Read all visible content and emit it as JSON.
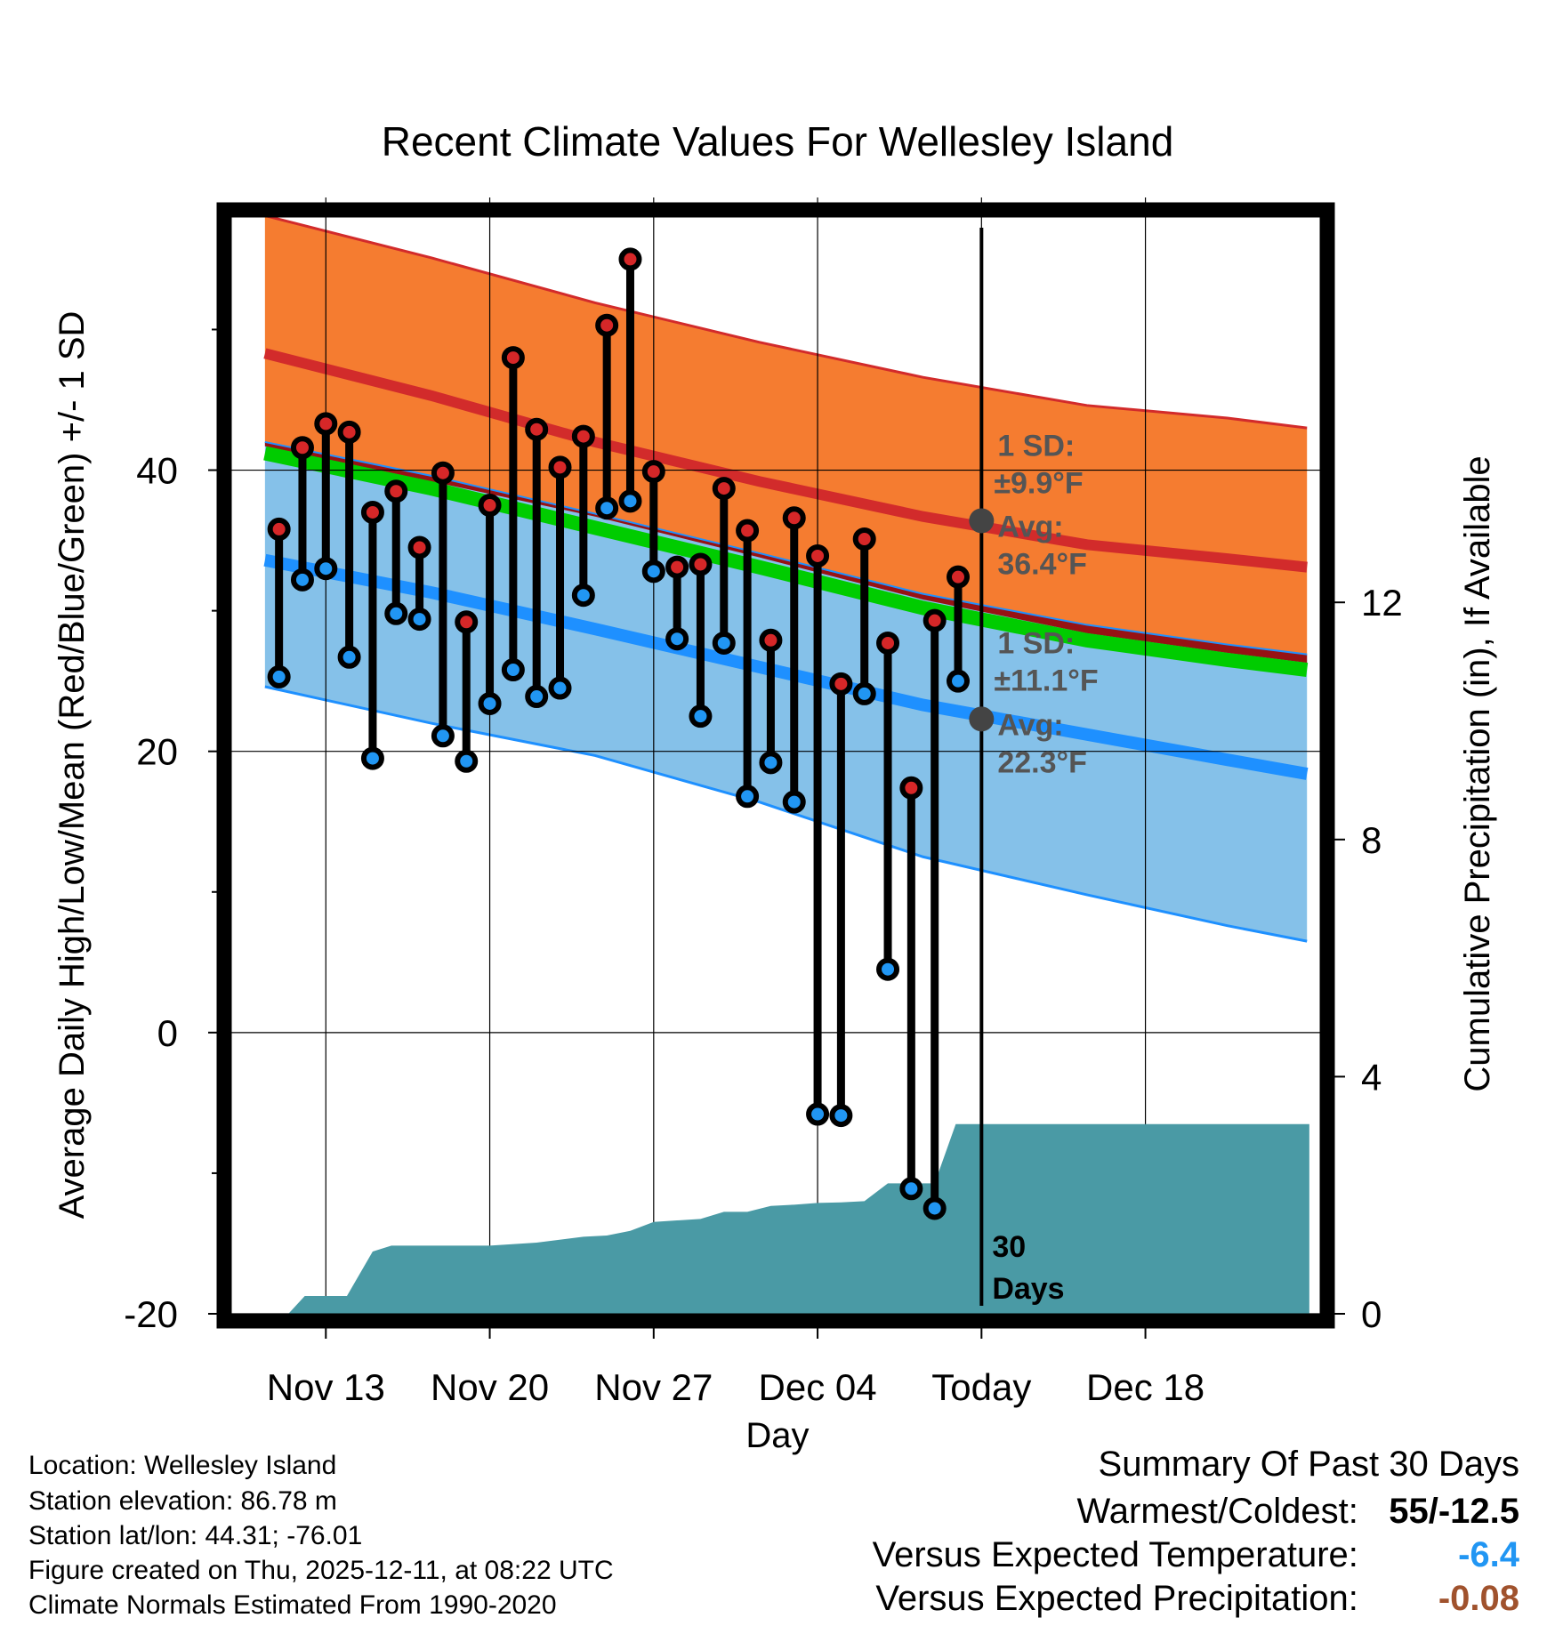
{
  "chart_data": {
    "type": "line",
    "title": "Recent Climate Values For Wellesley Island",
    "xlabel": "Day",
    "ylabel": "Average Daily High/Low/Mean (Red/Blue/Green) +/- 1 SD",
    "y2label": "Cumulative Precipitation (in), If Available",
    "ylim": [
      -20,
      58
    ],
    "y2lim": [
      0,
      18.5
    ],
    "xlim": [
      -4,
      42.5
    ],
    "x_ticks": [
      {
        "day": 0,
        "label": "Nov 13"
      },
      {
        "day": 7,
        "label": "Nov 20"
      },
      {
        "day": 14,
        "label": "Nov 27"
      },
      {
        "day": 21,
        "label": "Dec 04"
      },
      {
        "day": 28,
        "label": "Today"
      },
      {
        "day": 35,
        "label": "Dec 18"
      }
    ],
    "y_ticks": [
      -20,
      0,
      20,
      40
    ],
    "y_minor_ticks": [
      -10,
      10,
      30,
      50
    ],
    "y2_ticks": [
      0,
      4,
      8,
      12
    ],
    "today_day": 28,
    "normals_x": [
      -2.6,
      4.5,
      11.5,
      18.5,
      25.5,
      32.5,
      38.5,
      41.9
    ],
    "normal_high": [
      48.3,
      45.3,
      42.0,
      39.2,
      36.7,
      34.7,
      33.7,
      33.1
    ],
    "normal_high_upper": [
      58.1,
      55.1,
      51.9,
      49.1,
      46.6,
      44.6,
      43.7,
      43.0
    ],
    "normal_high_lower": [
      41.7,
      39.2,
      36.7,
      33.8,
      30.8,
      28.4,
      27.0,
      26.3
    ],
    "normal_mean": [
      41.2,
      38.7,
      35.9,
      33.1,
      30.2,
      27.9,
      26.5,
      25.8
    ],
    "normal_low": [
      33.6,
      31.3,
      28.7,
      26.0,
      23.3,
      21.2,
      19.4,
      18.4
    ],
    "normal_low_upper": [
      42.0,
      39.6,
      36.9,
      34.1,
      31.2,
      29.0,
      27.6,
      26.9
    ],
    "normal_low_lower": [
      24.6,
      22.0,
      19.7,
      16.4,
      12.5,
      9.8,
      7.6,
      6.5
    ],
    "days": [
      -2,
      -1,
      0,
      1,
      2,
      3,
      4,
      5,
      6,
      7,
      8,
      9,
      10,
      11,
      12,
      13,
      14,
      15,
      16,
      17,
      18,
      19,
      20,
      21,
      22,
      23,
      24,
      25,
      26,
      27
    ],
    "series": [
      {
        "name": "Daily High",
        "color": "#d62728",
        "values": [
          35.8,
          41.6,
          43.3,
          42.7,
          37.0,
          38.5,
          34.5,
          39.8,
          29.2,
          37.5,
          48.0,
          42.9,
          40.2,
          42.4,
          50.3,
          55.0,
          39.9,
          33.1,
          33.3,
          38.7,
          35.7,
          27.9,
          36.6,
          33.9,
          24.8,
          35.1,
          27.7,
          17.4,
          29.3,
          32.4
        ]
      },
      {
        "name": "Daily Low",
        "color": "#2196f3",
        "values": [
          25.3,
          32.2,
          33.0,
          26.7,
          19.5,
          29.8,
          29.4,
          21.1,
          19.3,
          23.4,
          25.8,
          23.9,
          24.5,
          31.1,
          37.3,
          37.8,
          32.8,
          28.0,
          22.5,
          27.7,
          16.8,
          19.2,
          16.4,
          -5.8,
          -5.9,
          24.1,
          4.5,
          -11.1,
          -12.5,
          25.0
        ]
      }
    ],
    "precip_x": [
      -2.6,
      -1.6,
      -0.9,
      0.9,
      2.0,
      2.8,
      4.0,
      7.0,
      9.0,
      11.0,
      12.0,
      13.0,
      14.0,
      16.0,
      17.0,
      18.0,
      19.0,
      20.0,
      21.0,
      22.0,
      23.0,
      24.0,
      25.0,
      26.0,
      26.9,
      27.8,
      28.0,
      34.0,
      42.0
    ],
    "precip_cum": [
      0.0,
      0.0,
      0.3,
      0.3,
      1.05,
      1.15,
      1.15,
      1.15,
      1.2,
      1.3,
      1.32,
      1.4,
      1.55,
      1.6,
      1.72,
      1.72,
      1.82,
      1.84,
      1.87,
      1.88,
      1.9,
      2.2,
      2.2,
      2.2,
      3.2,
      3.2,
      3.2,
      3.2,
      3.2
    ],
    "annotations": [
      {
        "lines": [
          "1 SD:",
          "±9.9°F",
          "Avg:",
          "36.4°F"
        ],
        "avg": 36.4,
        "sd": 9.9
      },
      {
        "lines": [
          "1 SD:",
          "±11.1°F",
          "Avg:",
          "22.3°F"
        ],
        "avg": 22.3,
        "sd": 11.1
      }
    ],
    "days_label": [
      "30",
      "Days"
    ],
    "colors": {
      "high_band": "#f57c30",
      "high_line": "#d22b2b",
      "mean_band": "#971214",
      "mean_line": "#00cc00",
      "low_band": "#85c1e9",
      "low_line": "#1e90ff",
      "precip": "#4a9aa5",
      "marker_high": "#d62728",
      "marker_low": "#2196f3"
    }
  },
  "info": {
    "location": "Location: Wellesley Island",
    "elevation": "Station elevation: 86.78 m",
    "latlon": "Station lat/lon: 44.31; -76.01",
    "created": "Figure created on Thu, 2025-12-11, at 08:22 UTC",
    "normals": "Climate Normals Estimated From 1990-2020"
  },
  "summary": {
    "title": "Summary Of Past 30 Days",
    "warmest_label": "Warmest/Coldest:",
    "warmest_value": "55/-12.5",
    "temp_label": "Versus Expected Temperature:",
    "temp_value": "-6.4",
    "temp_color": "#2196f3",
    "precip_label": "Versus Expected Precipitation:",
    "precip_value": "-0.08",
    "precip_color": "#a0522d"
  }
}
